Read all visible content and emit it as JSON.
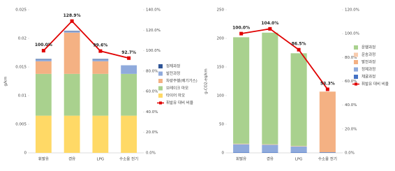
{
  "chart_data": [
    {
      "type": "bar",
      "stacked": true,
      "y_label": "g/km",
      "categories": [
        "휘발유",
        "경유",
        "LPG",
        "수소용 전기"
      ],
      "ylim": [
        0,
        0.025
      ],
      "yticks": [
        0,
        0.005,
        0.01,
        0.015,
        0.02,
        0.025
      ],
      "y2lim": [
        0,
        140
      ],
      "y2ticks": [
        {
          "value": 0,
          "label": "0.0%"
        },
        {
          "value": 20,
          "label": "20.0%"
        },
        {
          "value": 40,
          "label": "40.0%"
        },
        {
          "value": 60,
          "label": "60.0%"
        },
        {
          "value": 80,
          "label": "80.0%"
        },
        {
          "value": 100,
          "label": "100.0%"
        },
        {
          "value": 120,
          "label": "120.0%"
        },
        {
          "value": 140,
          "label": "140.0%"
        }
      ],
      "series": [
        {
          "name": "타이어 마모",
          "color": "#ffd966",
          "values": [
            0.0065,
            0.0065,
            0.0065,
            0.0065
          ]
        },
        {
          "name": "브레이크 마모",
          "color": "#a9d18e",
          "values": [
            0.0073,
            0.0073,
            0.0073,
            0.0073
          ]
        },
        {
          "name": "차량주행(배기가스)",
          "color": "#f4b183",
          "values": [
            0.0022,
            0.0072,
            0.0022,
            0
          ]
        },
        {
          "name": "발전과정",
          "color": "#8faadc",
          "values": [
            0.0003,
            0.0002,
            0.0003,
            0.0015
          ]
        },
        {
          "name": "정제과정",
          "color": "#2f5597",
          "values": [
            0.0001,
            0.0001,
            0.0001,
            0
          ]
        },
        {
          "name": "휘발유 대비 비율",
          "color": "#e00000",
          "axis": "y2",
          "values": [
            100,
            128.9,
            99.6,
            92.7
          ],
          "value_labels": [
            "100.0%",
            "128.9%",
            "99.6%",
            "92.7%"
          ]
        }
      ]
    },
    {
      "type": "bar",
      "stacked": true,
      "y_label": "g-CO2-eq/km",
      "categories": [
        "휘발유",
        "경유",
        "LPG",
        "수소용 전기"
      ],
      "ylim": [
        0,
        250
      ],
      "yticks": [
        0,
        50,
        100,
        150,
        200,
        250
      ],
      "y2lim": [
        0,
        120
      ],
      "y2ticks": [
        {
          "value": 0,
          "label": "0.0%"
        },
        {
          "value": 20,
          "label": "20.0%"
        },
        {
          "value": 40,
          "label": "40.0%"
        },
        {
          "value": 60,
          "label": "60.0%"
        },
        {
          "value": 80,
          "label": "80.0%"
        },
        {
          "value": 100,
          "label": "100.0%"
        },
        {
          "value": 120,
          "label": "120.0%"
        }
      ],
      "series": [
        {
          "name": "채굴과정",
          "color": "#4472c4",
          "values": [
            1,
            1,
            1,
            1
          ]
        },
        {
          "name": "정제과정",
          "color": "#8faadc",
          "values": [
            14,
            13,
            10,
            0
          ]
        },
        {
          "name": "발전과정",
          "color": "#f4b183",
          "values": [
            0,
            0,
            0,
            106
          ]
        },
        {
          "name": "운송과정",
          "color": "#f8cbad",
          "values": [
            1,
            1,
            1,
            0
          ]
        },
        {
          "name": "운행과정",
          "color": "#a9d18e",
          "values": [
            186,
            195,
            162,
            0
          ]
        },
        {
          "name": "휘발유 대비 비율",
          "color": "#e00000",
          "axis": "y2",
          "values": [
            100,
            104,
            86.5,
            53.3
          ],
          "value_labels": [
            "100.0%",
            "104.0%",
            "86.5%",
            "53.3%"
          ]
        }
      ]
    }
  ]
}
